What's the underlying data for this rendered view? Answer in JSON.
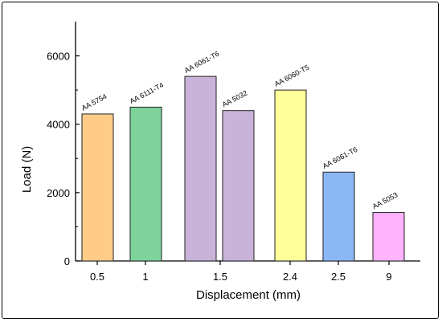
{
  "chart_data": {
    "type": "bar",
    "title": "",
    "xlabel": "Displacement (mm)",
    "ylabel": "Load (N)",
    "ylim": [
      0,
      7000
    ],
    "yticks": [
      0,
      2000,
      4000,
      6000
    ],
    "grid": false,
    "legend": "none",
    "bars": [
      {
        "category": "0.5",
        "label": "AA 5754",
        "value": 4300,
        "color": "#FFCC88"
      },
      {
        "category": "1",
        "label": "AA 6111-T4",
        "value": 4500,
        "color": "#7ED39A"
      },
      {
        "category": "1.5",
        "label": "AA 6061-T6",
        "value": 5400,
        "color": "#C9B3D9"
      },
      {
        "category": "1.5",
        "label": "AA 5032",
        "value": 4400,
        "color": "#C9B3D9"
      },
      {
        "category": "2.4",
        "label": "AA 6060-T5",
        "value": 5000,
        "color": "#FFFF99"
      },
      {
        "category": "2.5",
        "label": "AA 6061-T6",
        "value": 2600,
        "color": "#8AB8F5"
      },
      {
        "category": "9",
        "label": "AA 5053",
        "value": 1420,
        "color": "#FFB3FF"
      }
    ],
    "x_tick_labels": [
      "0.5",
      "1",
      "1.5",
      "2.4",
      "2.5",
      "9"
    ]
  }
}
